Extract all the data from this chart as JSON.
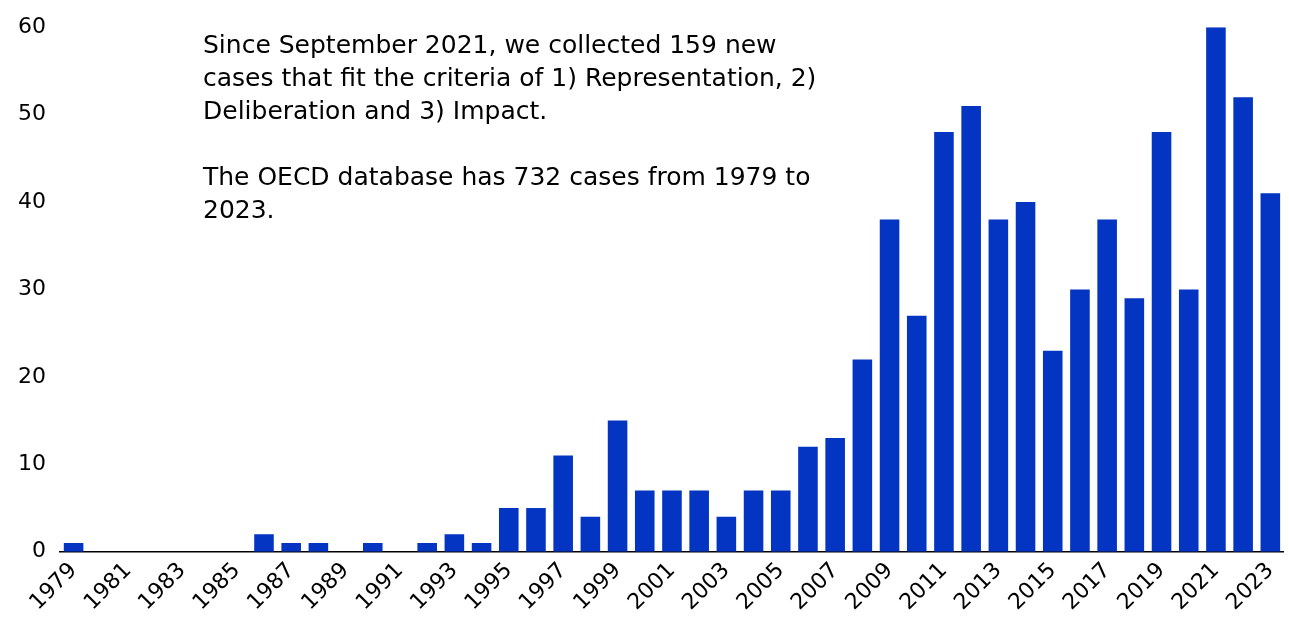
{
  "chart_data": {
    "type": "bar",
    "categories": [
      "1979",
      null,
      "1981",
      null,
      "1983",
      null,
      "1985",
      null,
      "1987",
      null,
      "1989",
      null,
      "1991",
      null,
      "1993",
      null,
      "1995",
      null,
      "1997",
      null,
      "1999",
      null,
      "2001",
      null,
      "2003",
      null,
      "2005",
      null,
      "2007",
      null,
      "2009",
      null,
      "2011",
      null,
      "2013",
      null,
      "2015",
      null,
      "2017",
      null,
      "2019",
      null,
      "2021",
      null,
      "2023"
    ],
    "values": [
      1,
      0,
      0,
      0,
      0,
      0,
      0,
      2,
      1,
      1,
      0,
      1,
      0,
      1,
      2,
      1,
      5,
      5,
      11,
      4,
      15,
      7,
      7,
      7,
      4,
      7,
      7,
      12,
      13,
      22,
      38,
      27,
      48,
      51,
      38,
      40,
      23,
      30,
      38,
      29,
      48,
      30,
      60,
      52,
      41
    ],
    "color": "#0335c2",
    "ylim": [
      0,
      60
    ],
    "yticks": [
      0,
      10,
      20,
      30,
      40,
      50,
      60
    ],
    "grid": false,
    "annotations": [
      "Since September 2021, we collected 159 new cases that fit the criteria of 1) Representation, 2) Deliberation and 3) Impact.",
      "The OECD database has 732 cases from 1979 to 2023."
    ]
  }
}
